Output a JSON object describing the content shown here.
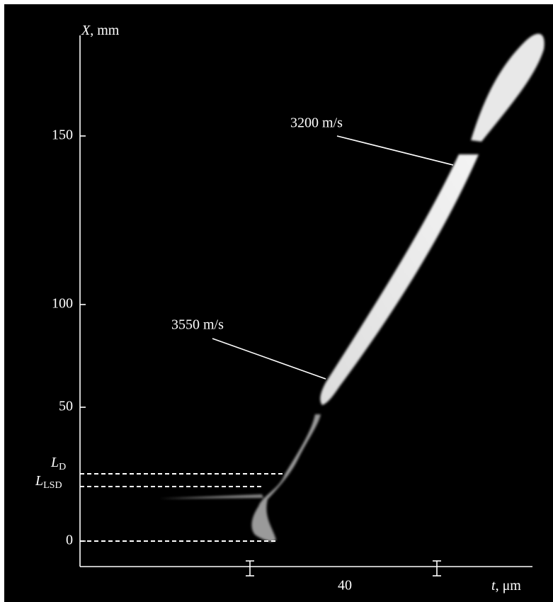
{
  "figure": {
    "y_axis": {
      "variable": "X",
      "unit": ", mm",
      "ticks": [
        "0",
        "50",
        "100",
        "150"
      ]
    },
    "x_axis": {
      "variable": "t",
      "unit": ", μm",
      "ticks": [
        "40"
      ]
    },
    "levels": [
      {
        "symbol": "L",
        "subscript": "D"
      },
      {
        "symbol": "L",
        "subscript": "LSD"
      }
    ],
    "annotations": [
      "3200 m/s",
      "3550 m/s"
    ]
  }
}
